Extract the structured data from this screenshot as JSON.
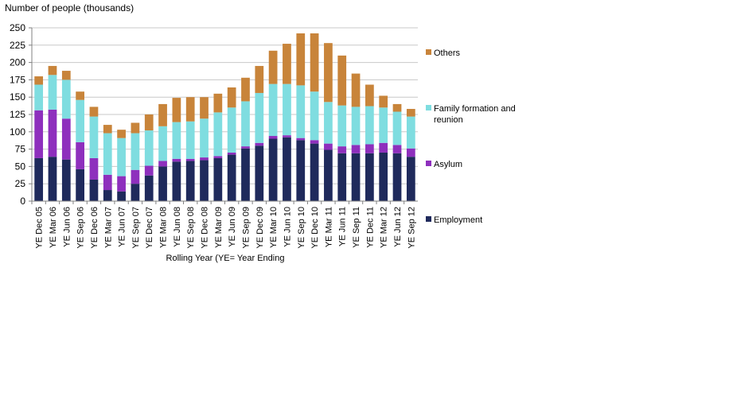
{
  "chart_data": {
    "type": "bar",
    "stacked": true,
    "ylabel": "Number of people  (thousands)",
    "xlabel": "Rolling Year (YE= Year Ending",
    "ylim": [
      0,
      250
    ],
    "yticks": [
      0,
      25,
      50,
      75,
      100,
      125,
      150,
      175,
      200,
      225,
      250
    ],
    "grid": true,
    "legend_position": "right",
    "categories": [
      "YE Dec 05",
      "YE Mar 06",
      "YE Jun 06",
      "YE Sep 06",
      "YE Dec 06",
      "YE Mar 07",
      "YE Jun 07",
      "YE Sep 07",
      "YE Dec 07",
      "YE Mar 08",
      "YE Jun 08",
      "YE Sep 08",
      "YE Dec 08",
      "YE Mar 09",
      "YE Jun 09",
      "YE Sep 09",
      "YE Dec 09",
      "YE Mar 10",
      "YE Jun 10",
      "YE Sep 10",
      "YE Dec 10",
      "YE Mar 11",
      "YE Jun 11",
      "YE Sep 11",
      "YE Dec 11",
      "YE Mar 12",
      "YE Jun 12",
      "YE Sep 12"
    ],
    "series": [
      {
        "name": "Employment",
        "color": "#1f2a5c",
        "values": [
          62,
          64,
          60,
          46,
          31,
          16,
          14,
          25,
          37,
          50,
          57,
          58,
          59,
          62,
          67,
          76,
          80,
          90,
          92,
          88,
          83,
          74,
          69,
          69,
          69,
          70,
          69,
          64
        ]
      },
      {
        "name": "Asylum",
        "color": "#8e2fbd",
        "values": [
          69,
          68,
          59,
          39,
          31,
          22,
          22,
          20,
          14,
          8,
          4,
          3,
          4,
          3,
          3,
          3,
          4,
          4,
          3,
          3,
          5,
          9,
          10,
          12,
          13,
          14,
          12,
          12
        ]
      },
      {
        "name": "Family formation and reunion",
        "color": "#7fdde0",
        "values": [
          37,
          50,
          56,
          61,
          60,
          60,
          55,
          53,
          51,
          50,
          53,
          54,
          56,
          63,
          65,
          65,
          72,
          75,
          74,
          76,
          70,
          60,
          59,
          55,
          55,
          51,
          48,
          46
        ]
      },
      {
        "name": "Others",
        "color": "#c8843a",
        "values": [
          12,
          13,
          13,
          12,
          14,
          12,
          12,
          15,
          23,
          32,
          35,
          35,
          31,
          27,
          29,
          34,
          39,
          48,
          58,
          75,
          84,
          85,
          72,
          48,
          31,
          17,
          11,
          11
        ]
      }
    ]
  }
}
